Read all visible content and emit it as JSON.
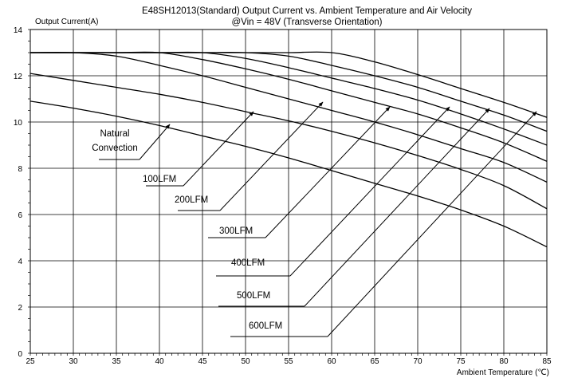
{
  "chart_data": {
    "type": "line",
    "title": "E48SH12013(Standard)  Output Current vs. Ambient Temperature and Air Velocity",
    "subtitle": "@Vin = 48V (Transverse Orientation)",
    "ylabel": "Output Current(A)",
    "xlabel": "Ambient Temperature (℃)",
    "xlim": [
      25,
      85
    ],
    "ylim": [
      0,
      14
    ],
    "xticks": [
      25,
      30,
      35,
      40,
      45,
      50,
      55,
      60,
      65,
      70,
      75,
      80,
      85
    ],
    "yticks": [
      0,
      2,
      4,
      6,
      8,
      10,
      12,
      14
    ],
    "grid": true,
    "x": [
      25,
      30,
      35,
      40,
      45,
      50,
      55,
      60,
      65,
      70,
      75,
      80,
      85
    ],
    "series": [
      {
        "name": "Natural Convection",
        "values": [
          10.9,
          10.6,
          10.25,
          9.85,
          9.4,
          8.95,
          8.45,
          7.9,
          7.35,
          6.8,
          6.2,
          5.5,
          4.6
        ]
      },
      {
        "name": "100LFM",
        "values": [
          12.1,
          11.8,
          11.5,
          11.2,
          10.85,
          10.45,
          10.05,
          9.6,
          9.1,
          8.55,
          7.95,
          7.25,
          6.25
        ]
      },
      {
        "name": "200LFM",
        "values": [
          13.0,
          13.0,
          12.85,
          12.45,
          12.0,
          11.5,
          11.0,
          10.5,
          10.0,
          9.45,
          8.85,
          8.25,
          7.4
        ]
      },
      {
        "name": "300LFM",
        "values": [
          13.0,
          13.0,
          13.0,
          13.0,
          12.7,
          12.3,
          11.85,
          11.35,
          10.85,
          10.35,
          9.75,
          9.1,
          8.3
        ]
      },
      {
        "name": "400LFM",
        "values": [
          13.0,
          13.0,
          13.0,
          13.0,
          13.0,
          12.75,
          12.35,
          11.9,
          11.45,
          10.95,
          10.35,
          9.7,
          9.0
        ]
      },
      {
        "name": "500LFM",
        "values": [
          13.0,
          13.0,
          13.0,
          13.0,
          13.0,
          13.0,
          12.85,
          12.45,
          12.0,
          11.5,
          10.9,
          10.3,
          9.6
        ]
      },
      {
        "name": "600LFM",
        "values": [
          13.0,
          13.0,
          13.0,
          13.0,
          13.0,
          13.0,
          13.0,
          13.0,
          12.6,
          12.05,
          11.45,
          10.85,
          10.2
        ]
      }
    ],
    "labels": [
      "Natural",
      "Convection",
      "100LFM",
      "200LFM",
      "300LFM",
      "400LFM",
      "500LFM",
      "600LFM"
    ]
  }
}
